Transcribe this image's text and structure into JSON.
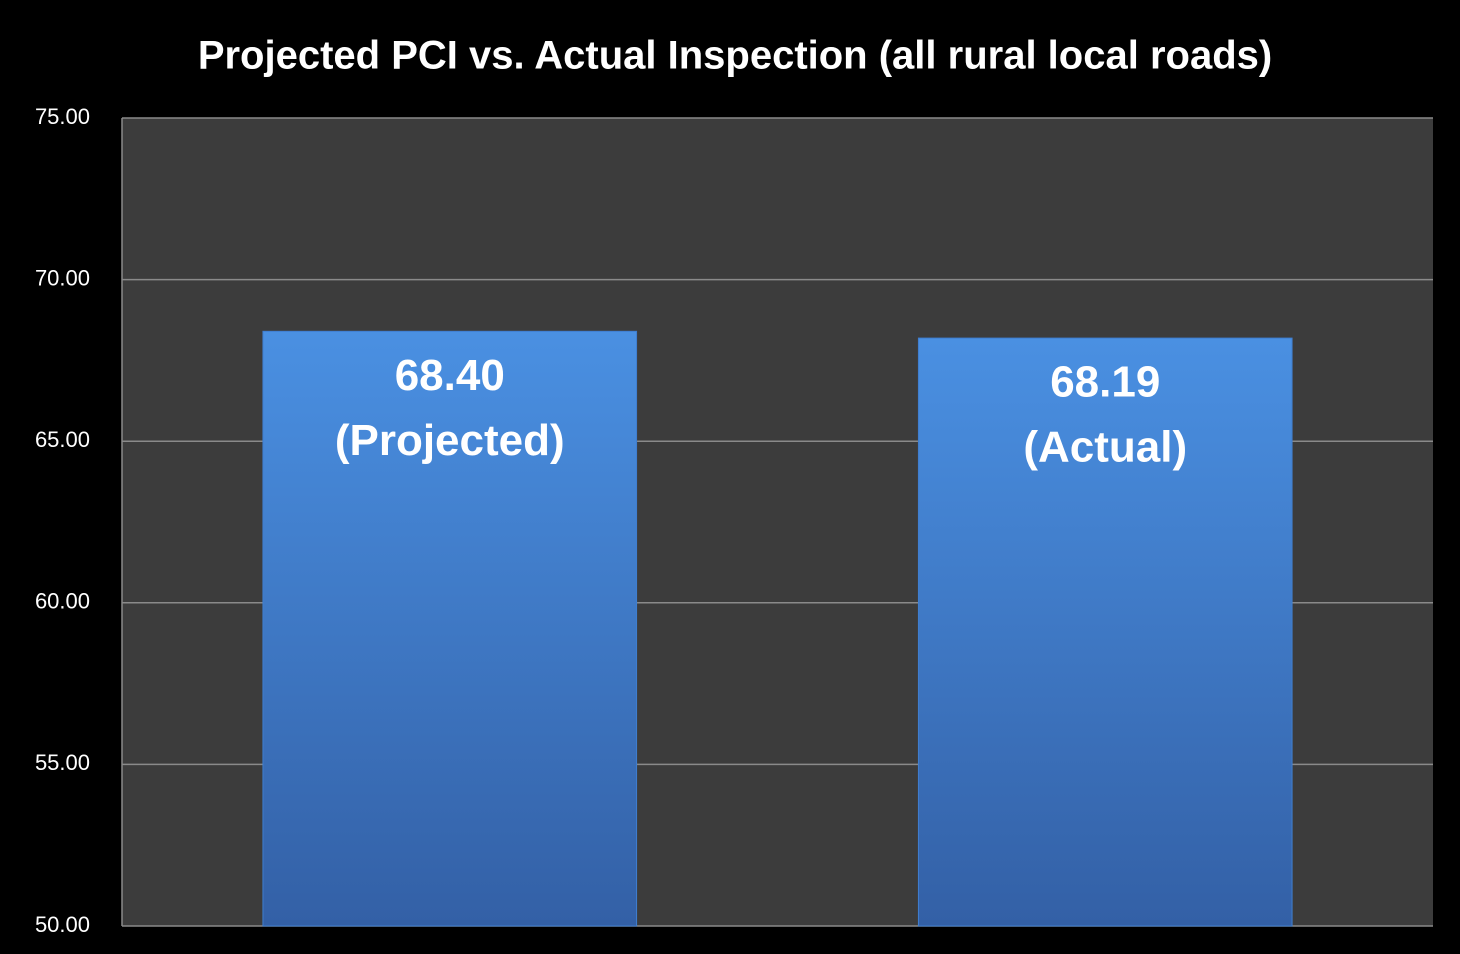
{
  "chart_data": {
    "type": "bar",
    "title": "Projected PCI vs. Actual Inspection (all rural local roads)",
    "categories": [
      "(Projected)",
      "(Actual)"
    ],
    "values": [
      68.4,
      68.19
    ],
    "value_labels": [
      "68.40",
      "68.19"
    ],
    "color": "#3f7ed0",
    "ylim": [
      50,
      75
    ],
    "yticks": [
      {
        "value": 50,
        "label": "50.00"
      },
      {
        "value": 55,
        "label": "55.00"
      },
      {
        "value": 60,
        "label": "60.00"
      },
      {
        "value": 65,
        "label": "65.00"
      },
      {
        "value": 70,
        "label": "70.00"
      },
      {
        "value": 75,
        "label": "75.00"
      }
    ],
    "grid": true
  }
}
